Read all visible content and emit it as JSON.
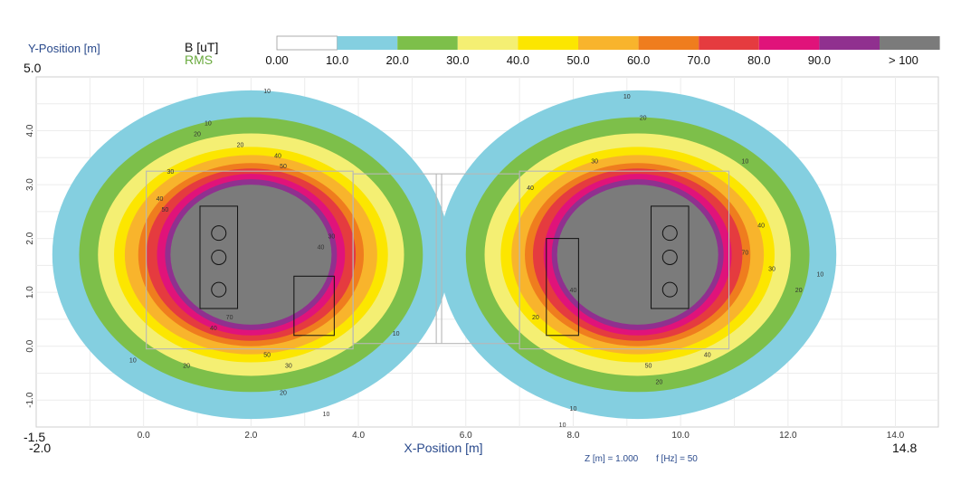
{
  "chart_data": {
    "type": "heatmap",
    "title": "",
    "quantity_label": "B [uT]",
    "mode_label": "RMS",
    "ylabel": "Y-Position [m]",
    "xlabel": "X-Position [m]",
    "xlim": [
      -2.0,
      14.8
    ],
    "ylim": [
      -1.5,
      5.0
    ],
    "xlim_labels": [
      "-2.0",
      "14.8"
    ],
    "ylim_labels": [
      "-1.5",
      "5.0"
    ],
    "xticks": [
      "0.0",
      "2.0",
      "4.0",
      "6.0",
      "8.0",
      "10.0",
      "12.0",
      "14.0"
    ],
    "yticks": [
      "-1.0",
      "0.0",
      "1.0",
      "2.0",
      "3.0",
      "4.0"
    ],
    "grid": true,
    "footer_z": "Z [m] = 1.000",
    "footer_f": "f [Hz] = 50",
    "scale": {
      "labels": [
        "0.00",
        "10.0",
        "20.0",
        "30.0",
        "40.0",
        "50.0",
        "60.0",
        "70.0",
        "80.0",
        "90.0",
        "> 100"
      ],
      "colors": [
        "#ffffff",
        "#84cfe0",
        "#7dbf4a",
        "#f4ef73",
        "#fce600",
        "#f8b42c",
        "#ef7d1e",
        "#e53b3f",
        "#e0137a",
        "#90308f",
        "#7b7b7b"
      ]
    },
    "sources": [
      {
        "name": "left",
        "cx": 2.0,
        "cy": 1.7,
        "radii_x": [
          3.7,
          3.2,
          2.85,
          2.55,
          2.35,
          2.1,
          1.95,
          1.75,
          1.6,
          1.5
        ],
        "radii_y": [
          3.05,
          2.55,
          2.25,
          2.0,
          1.85,
          1.7,
          1.6,
          1.5,
          1.4,
          1.3
        ]
      },
      {
        "name": "right",
        "cx": 9.2,
        "cy": 1.7,
        "radii_x": [
          3.7,
          3.2,
          2.85,
          2.55,
          2.35,
          2.1,
          1.95,
          1.75,
          1.6,
          1.5
        ],
        "radii_y": [
          3.05,
          2.55,
          2.25,
          2.0,
          1.85,
          1.7,
          1.6,
          1.5,
          1.4,
          1.3
        ]
      }
    ],
    "contour_labels": [
      {
        "x": 2.3,
        "y": 4.7,
        "v": "10"
      },
      {
        "x": 1.2,
        "y": 4.1,
        "v": "10"
      },
      {
        "x": 1.0,
        "y": 3.9,
        "v": "20"
      },
      {
        "x": 1.8,
        "y": 3.7,
        "v": "20"
      },
      {
        "x": 0.5,
        "y": 3.2,
        "v": "30"
      },
      {
        "x": 2.5,
        "y": 3.5,
        "v": "40"
      },
      {
        "x": 2.6,
        "y": 3.3,
        "v": "50"
      },
      {
        "x": 0.3,
        "y": 2.7,
        "v": "40"
      },
      {
        "x": 0.4,
        "y": 2.5,
        "v": "50"
      },
      {
        "x": 3.5,
        "y": 2.0,
        "v": "30"
      },
      {
        "x": 3.3,
        "y": 1.8,
        "v": "40"
      },
      {
        "x": 2.3,
        "y": -0.2,
        "v": "50"
      },
      {
        "x": 2.7,
        "y": -0.4,
        "v": "30"
      },
      {
        "x": 2.6,
        "y": -0.9,
        "v": "20"
      },
      {
        "x": 0.8,
        "y": -0.4,
        "v": "20"
      },
      {
        "x": 3.4,
        "y": -1.3,
        "v": "10"
      },
      {
        "x": -0.2,
        "y": -0.3,
        "v": "10"
      },
      {
        "x": 1.3,
        "y": 0.3,
        "v": "40"
      },
      {
        "x": 1.6,
        "y": 0.5,
        "v": "70"
      },
      {
        "x": 4.7,
        "y": 0.2,
        "v": "10"
      },
      {
        "x": 9.0,
        "y": 4.6,
        "v": "10"
      },
      {
        "x": 11.2,
        "y": 3.4,
        "v": "10"
      },
      {
        "x": 9.3,
        "y": 4.2,
        "v": "20"
      },
      {
        "x": 8.4,
        "y": 3.4,
        "v": "30"
      },
      {
        "x": 7.2,
        "y": 2.9,
        "v": "40"
      },
      {
        "x": 11.5,
        "y": 2.2,
        "v": "40"
      },
      {
        "x": 11.2,
        "y": 1.7,
        "v": "70"
      },
      {
        "x": 12.2,
        "y": 1.0,
        "v": "20"
      },
      {
        "x": 12.6,
        "y": 1.3,
        "v": "10"
      },
      {
        "x": 11.7,
        "y": 1.4,
        "v": "30"
      },
      {
        "x": 10.5,
        "y": -0.2,
        "v": "40"
      },
      {
        "x": 9.4,
        "y": -0.4,
        "v": "50"
      },
      {
        "x": 8.0,
        "y": -1.2,
        "v": "10"
      },
      {
        "x": 7.3,
        "y": 0.5,
        "v": "20"
      },
      {
        "x": 8.0,
        "y": 1.0,
        "v": "40"
      },
      {
        "x": 7.8,
        "y": -1.5,
        "v": "10"
      },
      {
        "x": 9.6,
        "y": -0.7,
        "v": "20"
      }
    ]
  }
}
